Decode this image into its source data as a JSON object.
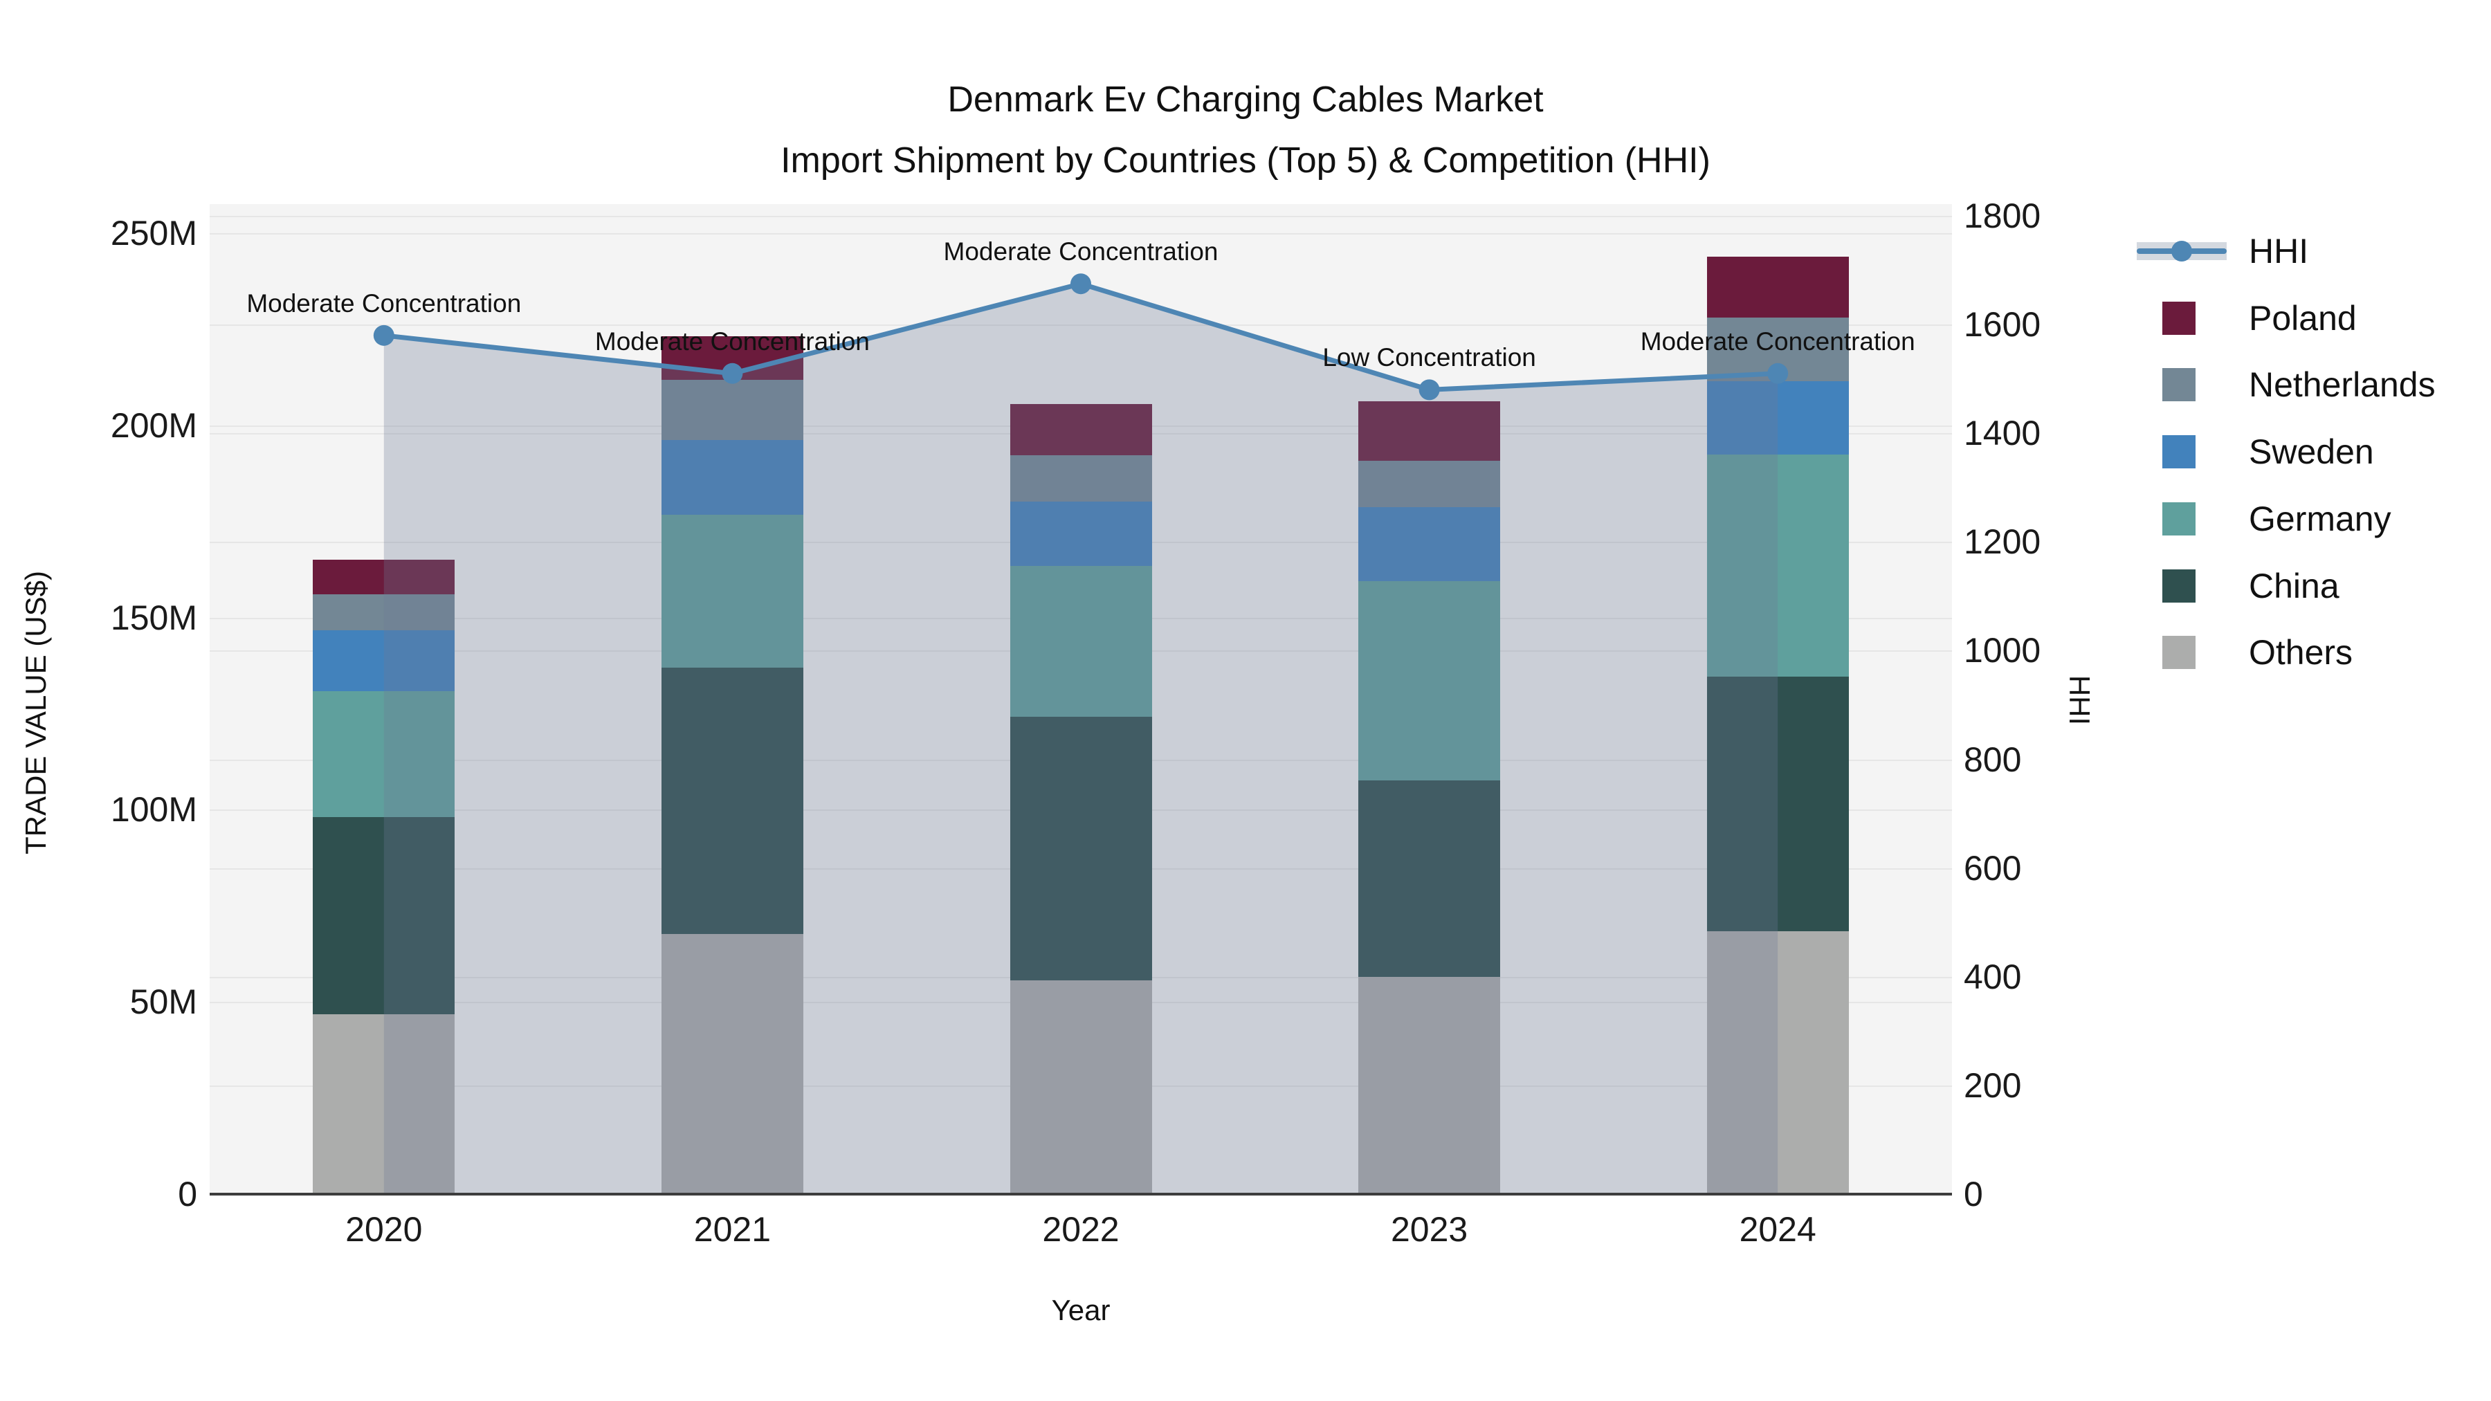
{
  "title": {
    "line1": "Denmark Ev Charging Cables Market",
    "line2": "Import Shipment by Countries (Top 5) & Competition (HHI)"
  },
  "axes": {
    "x": {
      "label": "Year"
    },
    "y_left": {
      "label": "TRADE VALUE (US$)",
      "ticks": [
        {
          "value": 0,
          "label": "0"
        },
        {
          "value": 50,
          "label": "50M"
        },
        {
          "value": 100,
          "label": "100M"
        },
        {
          "value": 150,
          "label": "150M"
        },
        {
          "value": 200,
          "label": "200M"
        },
        {
          "value": 250,
          "label": "250M"
        }
      ]
    },
    "y_right": {
      "label": "HHI",
      "ticks": [
        {
          "value": 0,
          "label": "0"
        },
        {
          "value": 200,
          "label": "200"
        },
        {
          "value": 400,
          "label": "400"
        },
        {
          "value": 600,
          "label": "600"
        },
        {
          "value": 800,
          "label": "800"
        },
        {
          "value": 1000,
          "label": "1000"
        },
        {
          "value": 1200,
          "label": "1200"
        },
        {
          "value": 1400,
          "label": "1400"
        },
        {
          "value": 1600,
          "label": "1600"
        },
        {
          "value": 1800,
          "label": "1800"
        }
      ]
    }
  },
  "legend": [
    {
      "name": "HHI",
      "type": "line"
    },
    {
      "name": "Poland",
      "type": "box"
    },
    {
      "name": "Netherlands",
      "type": "box"
    },
    {
      "name": "Sweden",
      "type": "box"
    },
    {
      "name": "Germany",
      "type": "box"
    },
    {
      "name": "China",
      "type": "box"
    },
    {
      "name": "Others",
      "type": "box"
    }
  ],
  "colors": {
    "HHI": "#4E86B4",
    "HHI_band_fill": "rgba(108,124,150,0.30)",
    "Poland": "#6B1B3C",
    "Netherlands": "#738795",
    "Sweden": "#4282BC",
    "Germany": "#5FA09D",
    "China": "#2F504F",
    "Others": "#ACADAC",
    "plot_background": "#f4f4f4",
    "gridline": "#e6e6e6",
    "axis_spine": "#3d3d3d"
  },
  "chart_data": {
    "type": "bar",
    "subtype": "stacked-bars-with-dual-axis-line",
    "categories": [
      "2020",
      "2021",
      "2022",
      "2023",
      "2024"
    ],
    "value_unit": "million US$",
    "series": [
      {
        "name": "Others",
        "values": [
          46.8,
          67.7,
          55.6,
          56.5,
          68.4
        ]
      },
      {
        "name": "China",
        "values": [
          51.3,
          69.3,
          68.6,
          51.1,
          66.2
        ]
      },
      {
        "name": "Germany",
        "values": [
          32.8,
          39.8,
          39.2,
          51.8,
          57.8
        ]
      },
      {
        "name": "Sweden",
        "values": [
          15.8,
          19.3,
          16.7,
          19.4,
          19.1
        ]
      },
      {
        "name": "Netherlands",
        "values": [
          9.4,
          15.7,
          12.1,
          11.9,
          16.6
        ]
      },
      {
        "name": "Poland",
        "values": [
          9.0,
          11.3,
          13.3,
          15.5,
          15.7
        ]
      }
    ],
    "totals": [
      165.0,
      223.1,
      205.5,
      206.2,
      243.8
    ],
    "line_series": {
      "name": "HHI",
      "axis": "right",
      "values": [
        1580,
        1510,
        1675,
        1480,
        1510
      ],
      "area_fill_under_line": true
    },
    "point_annotations": [
      "Moderate Concentration",
      "Moderate Concentration",
      "Moderate Concentration",
      "Low Concentration",
      "Moderate Concentration"
    ],
    "title": "Denmark Ev Charging Cables Market",
    "subtitle": "Import Shipment by Countries (Top 5) & Competition (HHI)",
    "xlabel": "Year",
    "ylabel_left": "TRADE VALUE (US$)",
    "ylabel_right": "HHI",
    "ylim_left": [
      0,
      250
    ],
    "ylim_right": [
      0,
      1800
    ],
    "grid": true,
    "legend_position": "right-outside"
  }
}
